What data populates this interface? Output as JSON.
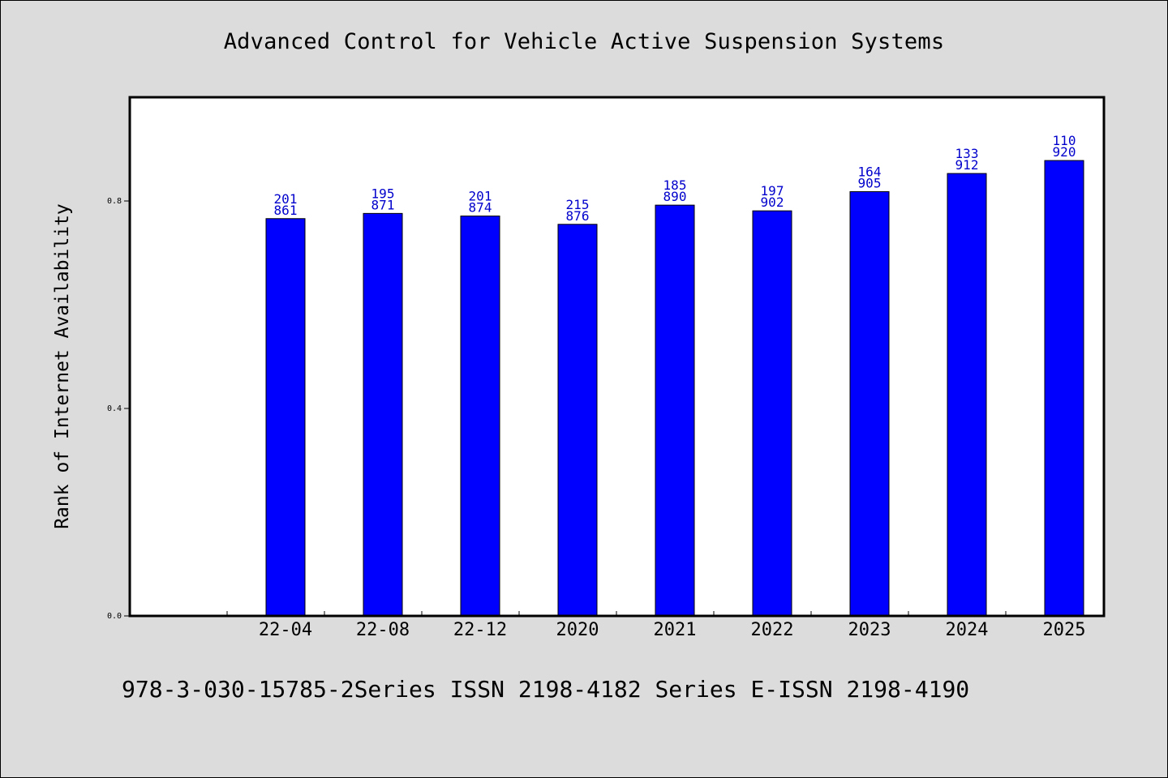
{
  "chart_data": {
    "type": "bar",
    "title": "Advanced Control for Vehicle Active Suspension Systems",
    "xlabel": "",
    "ylabel": "Rank of Internet Availability",
    "ylim": [
      0,
      1.0
    ],
    "yticks": [
      "0.0",
      "0.4",
      "0.8"
    ],
    "grid": false,
    "categories": [
      "",
      "22-04",
      "22-08",
      "22-12",
      "2020",
      "2021",
      "2022",
      "2023",
      "2024",
      "2025"
    ],
    "values": [
      null,
      0.766,
      0.776,
      0.771,
      0.755,
      0.792,
      0.781,
      0.818,
      0.853,
      0.878
    ],
    "labels_top": [
      "",
      "201",
      "195",
      "201",
      "215",
      "185",
      "197",
      "164",
      "133",
      "110"
    ],
    "labels_bottom": [
      "",
      "861",
      "871",
      "874",
      "876",
      "890",
      "902",
      "905",
      "912",
      "920"
    ],
    "bar_color": "#0000ff",
    "label_color": "#0000cc"
  },
  "footer": {
    "text": "978-3-030-15785-2Series ISSN 2198-4182 Series E-ISSN 2198-4190"
  },
  "colors": {
    "background": "#dcdcdc",
    "plot_background": "#ffffff"
  }
}
